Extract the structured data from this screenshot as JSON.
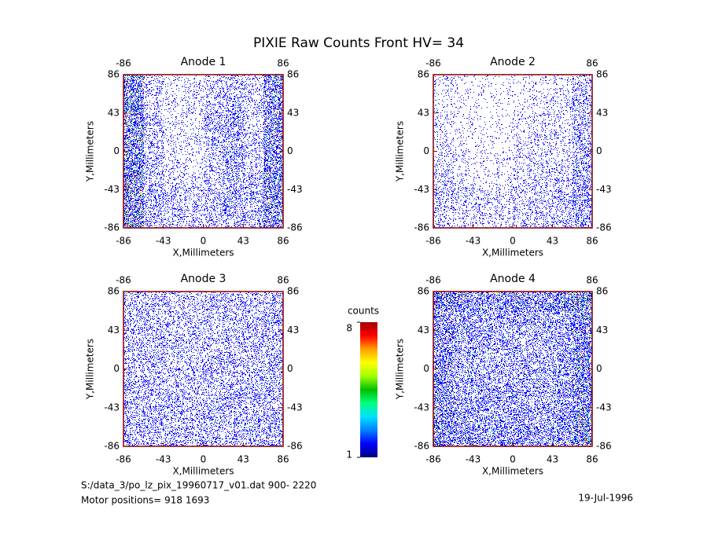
{
  "header": {
    "title": "PIXIE Raw Counts Front HV= 34"
  },
  "footer": {
    "file": "S:/data_3/po_lz_pix_19960717_v01.dat   900- 2220",
    "motor": "Motor positions= 918 1693",
    "date": "19-Jul-1996"
  },
  "colorbar": {
    "label": "counts",
    "zlim": [
      1,
      8
    ],
    "ticks": [
      1,
      8
    ],
    "colors": [
      "#00007f",
      "#0000ff",
      "#0080ff",
      "#00e0ff",
      "#00ff80",
      "#00c000",
      "#a0ff00",
      "#ffff00",
      "#ffa000",
      "#ff0000",
      "#a00000"
    ]
  },
  "chart_data": [
    {
      "type": "heatmap",
      "title": "Anode 1",
      "xlabel": "X,Millimeters",
      "ylabel": "Y,Millimeters",
      "xlim": [
        -86,
        86
      ],
      "ylim": [
        -86,
        86
      ],
      "xticks": [
        -86,
        -43,
        0,
        43,
        86
      ],
      "yticks": [
        -86,
        -43,
        0,
        43,
        86
      ],
      "x2ticks": [
        -86,
        86
      ],
      "y2ticks": [
        -86,
        -43,
        0,
        43,
        86
      ],
      "values": [
        [
          0.9,
          0.3,
          0.15,
          0.2,
          0.3,
          0.35,
          0.25,
          0.8
        ],
        [
          0.9,
          0.3,
          0.15,
          0.2,
          0.35,
          0.45,
          0.3,
          0.8
        ],
        [
          0.9,
          0.35,
          0.2,
          0.2,
          0.4,
          0.55,
          0.3,
          0.8
        ],
        [
          0.9,
          0.35,
          0.2,
          0.2,
          0.4,
          0.55,
          0.3,
          0.8
        ],
        [
          0.9,
          0.35,
          0.2,
          0.2,
          0.35,
          0.55,
          0.3,
          0.8
        ],
        [
          0.95,
          0.4,
          0.25,
          0.2,
          0.35,
          0.5,
          0.35,
          0.85
        ],
        [
          0.95,
          0.5,
          0.35,
          0.3,
          0.4,
          0.55,
          0.45,
          0.85
        ],
        [
          0.95,
          0.45,
          0.35,
          0.3,
          0.35,
          0.5,
          0.45,
          0.85
        ]
      ]
    },
    {
      "type": "heatmap",
      "title": "Anode 2",
      "xlabel": "X,Millimeters",
      "ylabel": "Y,Millimeters",
      "xlim": [
        -86,
        86
      ],
      "ylim": [
        -86,
        86
      ],
      "xticks": [
        -86,
        -43,
        0,
        43,
        86
      ],
      "yticks": [
        -86,
        -43,
        0,
        43,
        86
      ],
      "x2ticks": [
        -86,
        86
      ],
      "y2ticks": [
        -86,
        -43,
        0,
        43,
        86
      ],
      "values": [
        [
          0.2,
          0.1,
          0.08,
          0.08,
          0.1,
          0.12,
          0.15,
          0.4
        ],
        [
          0.2,
          0.1,
          0.08,
          0.08,
          0.12,
          0.15,
          0.2,
          0.45
        ],
        [
          0.2,
          0.12,
          0.08,
          0.1,
          0.15,
          0.2,
          0.2,
          0.45
        ],
        [
          0.2,
          0.12,
          0.1,
          0.1,
          0.2,
          0.25,
          0.2,
          0.45
        ],
        [
          0.25,
          0.15,
          0.12,
          0.12,
          0.2,
          0.25,
          0.25,
          0.5
        ],
        [
          0.3,
          0.2,
          0.15,
          0.15,
          0.25,
          0.3,
          0.3,
          0.5
        ],
        [
          0.4,
          0.3,
          0.25,
          0.2,
          0.3,
          0.35,
          0.35,
          0.55
        ],
        [
          0.35,
          0.3,
          0.25,
          0.2,
          0.3,
          0.35,
          0.35,
          0.55
        ]
      ]
    },
    {
      "type": "heatmap",
      "title": "Anode 3",
      "xlabel": "X,Millimeters",
      "ylabel": "Y,Millimeters",
      "xlim": [
        -86,
        86
      ],
      "ylim": [
        -86,
        86
      ],
      "xticks": [
        -86,
        -43,
        0,
        43,
        86
      ],
      "yticks": [
        -86,
        -43,
        0,
        43,
        86
      ],
      "x2ticks": [
        -86,
        86
      ],
      "y2ticks": [
        -86,
        -43,
        0,
        43,
        86
      ],
      "values": [
        [
          0.4,
          0.35,
          0.35,
          0.35,
          0.35,
          0.35,
          0.4,
          0.45
        ],
        [
          0.4,
          0.4,
          0.35,
          0.35,
          0.35,
          0.4,
          0.4,
          0.45
        ],
        [
          0.4,
          0.4,
          0.35,
          0.35,
          0.4,
          0.4,
          0.4,
          0.45
        ],
        [
          0.4,
          0.4,
          0.35,
          0.35,
          0.4,
          0.4,
          0.4,
          0.45
        ],
        [
          0.4,
          0.4,
          0.4,
          0.35,
          0.4,
          0.4,
          0.4,
          0.45
        ],
        [
          0.45,
          0.45,
          0.4,
          0.4,
          0.4,
          0.45,
          0.45,
          0.45
        ],
        [
          0.45,
          0.45,
          0.4,
          0.4,
          0.45,
          0.45,
          0.45,
          0.5
        ],
        [
          0.45,
          0.45,
          0.4,
          0.4,
          0.45,
          0.45,
          0.45,
          0.5
        ]
      ]
    },
    {
      "type": "heatmap",
      "title": "Anode 4",
      "xlabel": "X,Millimeters",
      "ylabel": "Y,Millimeters",
      "xlim": [
        -86,
        86
      ],
      "ylim": [
        -86,
        86
      ],
      "xticks": [
        -86,
        -43,
        0,
        43,
        86
      ],
      "yticks": [
        -86,
        -43,
        0,
        43,
        86
      ],
      "x2ticks": [
        -86,
        86
      ],
      "y2ticks": [
        -86,
        -43,
        0,
        43,
        86
      ],
      "values": [
        [
          0.9,
          0.8,
          0.75,
          0.75,
          0.75,
          0.75,
          0.8,
          0.9
        ],
        [
          0.8,
          0.6,
          0.55,
          0.55,
          0.55,
          0.55,
          0.6,
          0.85
        ],
        [
          0.8,
          0.55,
          0.5,
          0.5,
          0.5,
          0.5,
          0.55,
          0.85
        ],
        [
          0.8,
          0.55,
          0.5,
          0.45,
          0.5,
          0.5,
          0.55,
          0.85
        ],
        [
          0.8,
          0.55,
          0.5,
          0.5,
          0.5,
          0.55,
          0.6,
          0.85
        ],
        [
          0.8,
          0.6,
          0.55,
          0.55,
          0.55,
          0.55,
          0.6,
          0.85
        ],
        [
          0.85,
          0.65,
          0.6,
          0.6,
          0.6,
          0.6,
          0.65,
          0.9
        ],
        [
          0.9,
          0.75,
          0.7,
          0.7,
          0.7,
          0.7,
          0.75,
          0.95
        ]
      ]
    }
  ]
}
